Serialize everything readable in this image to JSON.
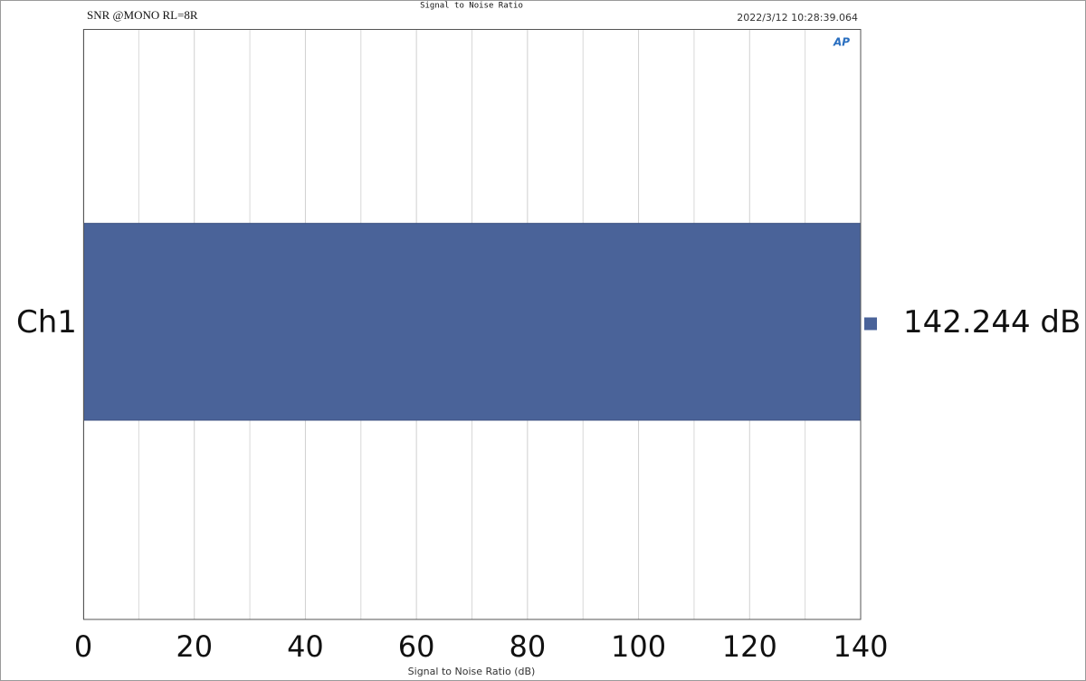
{
  "chart_data": {
    "type": "hbar",
    "title": "Signal to Noise Ratio",
    "subtitle": "SNR @MONO RL=8R",
    "timestamp": "2022/3/12 10:28:39.064",
    "logo": "AP",
    "x_label": "Signal to Noise Ratio (dB)",
    "categories": [
      "Ch1"
    ],
    "values": [
      142.244
    ],
    "value_labels": [
      "142.244 dB"
    ],
    "color": "#4a6399",
    "xlim": [
      0,
      140
    ],
    "xticks": [
      0,
      20,
      40,
      60,
      80,
      100,
      120,
      140
    ],
    "minor_xticks": [
      10,
      30,
      50,
      70,
      90,
      110,
      130
    ],
    "grid": true
  }
}
